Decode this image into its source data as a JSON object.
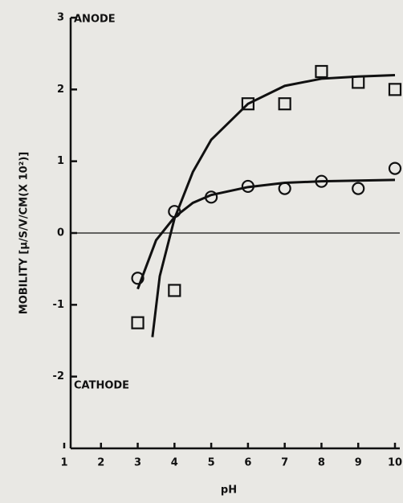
{
  "chart_data": {
    "type": "scatter",
    "y_label": "MOBILITY [μ/S/V/CM(X 10²)]",
    "x_label": "pH",
    "annotations": [
      "ANODE",
      "CATHODE"
    ],
    "xlim": [
      1,
      10
    ],
    "xticks": [
      1,
      2,
      3,
      4,
      5,
      6,
      7,
      8,
      9,
      10
    ],
    "ylim": [
      -3,
      3
    ],
    "yticks": [
      -2,
      -1,
      0,
      1,
      2,
      3
    ],
    "reference_line": 0,
    "color": "#111111",
    "series": [
      {
        "marker": "square",
        "x": [
          3,
          4,
          6,
          7,
          8,
          9,
          10
        ],
        "values": [
          -1.25,
          -0.8,
          1.8,
          1.8,
          2.25,
          2.1,
          2.0
        ]
      },
      {
        "marker": "circle",
        "x": [
          3,
          4,
          5,
          6,
          7,
          8,
          9,
          10
        ],
        "values": [
          -0.63,
          0.3,
          0.5,
          0.65,
          0.62,
          0.72,
          0.62,
          0.9
        ]
      },
      {
        "marker": "line",
        "x": [
          3.4,
          3.6,
          4,
          4.5,
          5,
          6,
          7,
          8,
          9,
          10
        ],
        "values": [
          -1.45,
          -0.6,
          0.2,
          0.85,
          1.3,
          1.8,
          2.05,
          2.15,
          2.18,
          2.2
        ]
      },
      {
        "marker": "line",
        "x": [
          3,
          3.5,
          4,
          4.5,
          5,
          6,
          7,
          8,
          9,
          10
        ],
        "values": [
          -0.78,
          -0.1,
          0.22,
          0.42,
          0.53,
          0.64,
          0.7,
          0.72,
          0.73,
          0.74
        ]
      }
    ]
  }
}
